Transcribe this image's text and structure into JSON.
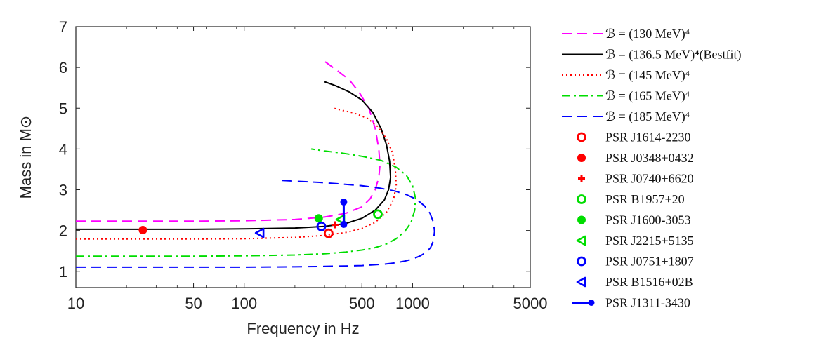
{
  "chart_data": {
    "type": "line",
    "xscale": "log",
    "xlabel": "Frequency in Hz",
    "ylabel": "Mass in M⊙",
    "xlim": [
      10,
      5000
    ],
    "ylim": [
      0.6,
      7
    ],
    "xticks": [
      10,
      50,
      100,
      500,
      1000,
      5000
    ],
    "xtick_labels": [
      "10",
      "50",
      "100",
      "500",
      "1000",
      "5000"
    ],
    "yticks": [
      1,
      2,
      3,
      4,
      5,
      6,
      7
    ],
    "ytick_labels": [
      "1",
      "2",
      "3",
      "4",
      "5",
      "6",
      "7"
    ],
    "series": [
      {
        "name": "ℬ = (130 MeV)⁴",
        "color": "#ff00ff",
        "style": "dashed",
        "x": [
          10,
          50,
          100,
          200,
          300,
          400,
          500,
          560,
          600,
          630,
          640,
          630,
          600,
          550,
          480,
          420,
          350,
          300
        ],
        "y": [
          2.23,
          2.23,
          2.24,
          2.27,
          2.33,
          2.42,
          2.58,
          2.78,
          3.0,
          3.3,
          3.6,
          4.0,
          4.5,
          5.0,
          5.4,
          5.7,
          5.95,
          6.15
        ]
      },
      {
        "name": "ℬ = (136.5 MeV)⁴(Bestfit)",
        "color": "#000000",
        "style": "solid",
        "x": [
          10,
          50,
          100,
          200,
          300,
          400,
          500,
          600,
          680,
          720,
          740,
          730,
          700,
          650,
          580,
          500,
          420,
          350,
          300
        ],
        "y": [
          2.03,
          2.03,
          2.04,
          2.06,
          2.1,
          2.17,
          2.3,
          2.5,
          2.75,
          3.0,
          3.3,
          3.7,
          4.1,
          4.5,
          4.9,
          5.2,
          5.4,
          5.55,
          5.65
        ]
      },
      {
        "name": "ℬ = (145 MeV)⁴",
        "color": "#ff0000",
        "style": "dotted",
        "x": [
          10,
          50,
          100,
          200,
          300,
          400,
          500,
          600,
          700,
          770,
          800,
          790,
          760,
          700,
          620,
          540,
          450,
          380,
          340
        ],
        "y": [
          1.79,
          1.79,
          1.8,
          1.83,
          1.88,
          1.95,
          2.05,
          2.2,
          2.45,
          2.75,
          3.1,
          3.5,
          3.9,
          4.25,
          4.55,
          4.75,
          4.88,
          4.95,
          5.0
        ]
      },
      {
        "name": "ℬ = (165 MeV)⁴",
        "color": "#00dd00",
        "style": "dashdot",
        "x": [
          10,
          50,
          100,
          200,
          300,
          400,
          500,
          600,
          700,
          800,
          900,
          980,
          1030,
          1040,
          1000,
          920,
          800,
          650,
          500,
          380,
          300,
          250
        ],
        "y": [
          1.37,
          1.37,
          1.38,
          1.4,
          1.43,
          1.47,
          1.52,
          1.58,
          1.67,
          1.8,
          1.98,
          2.2,
          2.5,
          2.8,
          3.1,
          3.35,
          3.55,
          3.72,
          3.82,
          3.9,
          3.95,
          4.0
        ]
      },
      {
        "name": "ℬ = (185 MeV)⁴",
        "color": "#0000ff",
        "style": "dashed",
        "x": [
          10,
          50,
          100,
          200,
          300,
          400,
          500,
          600,
          700,
          800,
          900,
          1000,
          1100,
          1200,
          1280,
          1330,
          1350,
          1330,
          1270,
          1180,
          1060,
          920,
          780,
          640,
          500,
          380,
          280,
          200,
          165
        ],
        "y": [
          1.1,
          1.1,
          1.1,
          1.11,
          1.12,
          1.13,
          1.14,
          1.16,
          1.18,
          1.21,
          1.25,
          1.3,
          1.37,
          1.46,
          1.58,
          1.75,
          1.98,
          2.2,
          2.42,
          2.6,
          2.76,
          2.88,
          2.97,
          3.04,
          3.1,
          3.14,
          3.18,
          3.21,
          3.23
        ]
      }
    ],
    "points": [
      {
        "name": "PSR J1614-2230",
        "color": "#ff0000",
        "marker": "circle-open",
        "x": [
          317
        ],
        "y": [
          1.93
        ]
      },
      {
        "name": "PSR J0348+0432",
        "color": "#ff0000",
        "marker": "circle-filled",
        "x": [
          25
        ],
        "y": [
          2.01
        ]
      },
      {
        "name": "PSR J0740+6620",
        "color": "#ff0000",
        "marker": "plus",
        "x": [
          346
        ],
        "y": [
          2.14
        ]
      },
      {
        "name": "PSR B1957+20",
        "color": "#00dd00",
        "marker": "circle-open",
        "x": [
          622
        ],
        "y": [
          2.4
        ]
      },
      {
        "name": "PSR J1600-3053",
        "color": "#00dd00",
        "marker": "circle-filled",
        "x": [
          277
        ],
        "y": [
          2.3
        ]
      },
      {
        "name": "PSR J2215+5135",
        "color": "#00dd00",
        "marker": "triangle-left",
        "x": [
          374
        ],
        "y": [
          2.27
        ]
      },
      {
        "name": "PSR J0751+1807",
        "color": "#0000ff",
        "marker": "circle-open",
        "x": [
          287
        ],
        "y": [
          2.1
        ]
      },
      {
        "name": "PSR B1516+02B",
        "color": "#0000ff",
        "marker": "triangle-left",
        "x": [
          124
        ],
        "y": [
          1.94
        ]
      },
      {
        "name": "PSR J1311-3430",
        "color": "#0000ff",
        "marker": "errorbar",
        "x": [
          390,
          390
        ],
        "y": [
          2.15,
          2.7
        ]
      }
    ],
    "legend_position": "outside-right"
  }
}
